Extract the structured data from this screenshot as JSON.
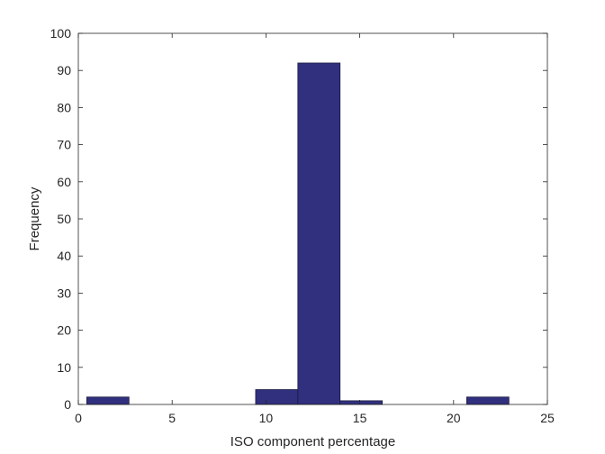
{
  "chart_data": {
    "type": "bar",
    "title": "",
    "xlabel": "ISO component percentage",
    "ylabel": "Frequency",
    "xlim": [
      0,
      25
    ],
    "ylim": [
      0,
      100
    ],
    "xticks": [
      0,
      5,
      10,
      15,
      20,
      25
    ],
    "yticks": [
      0,
      10,
      20,
      30,
      40,
      50,
      60,
      70,
      80,
      90,
      100
    ],
    "bins": [
      {
        "x0": 0.45,
        "x1": 2.7,
        "count": 2
      },
      {
        "x0": 2.7,
        "x1": 4.95,
        "count": 0
      },
      {
        "x0": 4.95,
        "x1": 7.2,
        "count": 0
      },
      {
        "x0": 7.2,
        "x1": 9.45,
        "count": 0
      },
      {
        "x0": 9.45,
        "x1": 11.7,
        "count": 4
      },
      {
        "x0": 11.7,
        "x1": 13.95,
        "count": 92
      },
      {
        "x0": 13.95,
        "x1": 16.2,
        "count": 1
      },
      {
        "x0": 16.2,
        "x1": 18.45,
        "count": 0
      },
      {
        "x0": 18.45,
        "x1": 20.7,
        "count": 0
      },
      {
        "x0": 20.7,
        "x1": 22.95,
        "count": 2
      }
    ],
    "grid": false,
    "bar_color": "#31307f",
    "bar_edge_color": "#1a1a40"
  }
}
